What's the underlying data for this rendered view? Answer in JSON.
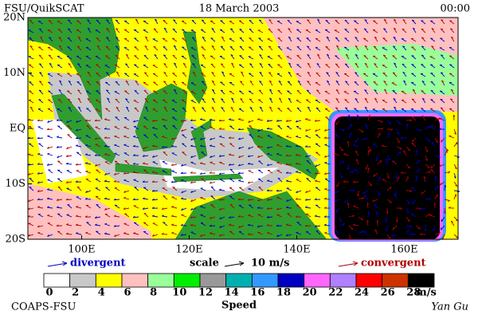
{
  "header": {
    "left": "FSU/QuikSCAT",
    "center": "18 March 2003",
    "right": "00:00"
  },
  "map": {
    "lat_labels": [
      "20N",
      "10N",
      "EQ",
      "10S",
      "20S"
    ],
    "lon_labels": [
      "100E",
      "120E",
      "140E",
      "160E"
    ]
  },
  "legend": {
    "divergent": "divergent",
    "scale": "scale",
    "scale_value": "10 m/s",
    "convergent": "convergent"
  },
  "colorbar": {
    "levels": [
      0,
      2,
      4,
      6,
      8,
      10,
      12,
      14,
      16,
      18,
      20,
      22,
      24,
      26,
      28
    ],
    "unit": "m/s",
    "label": "Speed",
    "colors": [
      "#ffffff",
      "#c8c8c8",
      "#ffff00",
      "#ffc0c0",
      "#99ff99",
      "#00ee00",
      "#999999",
      "#00b0b0",
      "#3399ff",
      "#0000c0",
      "#ff66ff",
      "#b080ff",
      "#ff0000",
      "#cc3300",
      "#000000"
    ]
  },
  "footer": {
    "left": "COAPS-FSU",
    "right": "Yan Gu"
  }
}
